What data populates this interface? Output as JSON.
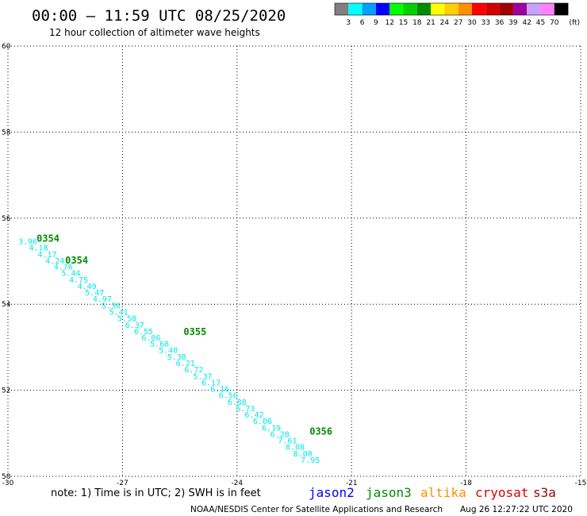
{
  "header": {
    "title": "00:00 – 11:59 UTC 08/25/2020",
    "subtitle": "12 hour collection of altimeter wave heights"
  },
  "legend": {
    "unit": "(ft)",
    "bins": [
      {
        "label": "3",
        "color": "#808080"
      },
      {
        "label": "6",
        "color": "#00ffff"
      },
      {
        "label": "9",
        "color": "#00a0ff"
      },
      {
        "label": "12",
        "color": "#0000ff"
      },
      {
        "label": "15",
        "color": "#00ff00"
      },
      {
        "label": "18",
        "color": "#00d000"
      },
      {
        "label": "21",
        "color": "#008c00"
      },
      {
        "label": "24",
        "color": "#ffff00"
      },
      {
        "label": "27",
        "color": "#ffd000"
      },
      {
        "label": "30",
        "color": "#ff9000"
      },
      {
        "label": "33",
        "color": "#ff0000"
      },
      {
        "label": "36",
        "color": "#d00000"
      },
      {
        "label": "39",
        "color": "#a00000"
      },
      {
        "label": "42",
        "color": "#a000a0"
      },
      {
        "label": "45",
        "color": "#c8a0ff"
      },
      {
        "label": "70",
        "color": "#ff80ff"
      },
      {
        "label": "",
        "color": "#000000"
      }
    ]
  },
  "chart_data": {
    "type": "scatter",
    "xlim": [
      -30,
      -15
    ],
    "ylim": [
      50,
      60
    ],
    "xticks": [
      -30,
      -27,
      -24,
      -21,
      -18,
      -15
    ],
    "xtick_labels": [
      "-30",
      "-27",
      "-24",
      "-21",
      "-18",
      "-15"
    ],
    "yticks": [
      50,
      52,
      54,
      56,
      58,
      60
    ],
    "ytick_labels": [
      "50",
      "52",
      "54",
      "56",
      "58",
      "60"
    ],
    "grid": true,
    "point_color": "#00e8e8",
    "time_color": "#008c00",
    "points": [
      {
        "x": -29.48,
        "y": 55.45,
        "label": "3.96"
      },
      {
        "x": -29.2,
        "y": 55.3,
        "label": "4.18"
      },
      {
        "x": -28.97,
        "y": 55.15,
        "label": "4.17"
      },
      {
        "x": -28.77,
        "y": 55.0,
        "label": "4.24"
      },
      {
        "x": -28.55,
        "y": 54.86,
        "label": "4.76"
      },
      {
        "x": -28.35,
        "y": 54.71,
        "label": "5.44"
      },
      {
        "x": -28.15,
        "y": 54.56,
        "label": "4.75"
      },
      {
        "x": -27.93,
        "y": 54.41,
        "label": "4.49"
      },
      {
        "x": -27.73,
        "y": 54.26,
        "label": "5.47"
      },
      {
        "x": -27.53,
        "y": 54.11,
        "label": "4.97"
      },
      {
        "x": -27.3,
        "y": 53.96,
        "label": "5.36"
      },
      {
        "x": -27.1,
        "y": 53.81,
        "label": "5.41"
      },
      {
        "x": -26.88,
        "y": 53.66,
        "label": "5.58"
      },
      {
        "x": -26.68,
        "y": 53.51,
        "label": "6.37"
      },
      {
        "x": -26.45,
        "y": 53.36,
        "label": "6.55"
      },
      {
        "x": -26.25,
        "y": 53.21,
        "label": "6.06"
      },
      {
        "x": -26.03,
        "y": 53.07,
        "label": "5.68"
      },
      {
        "x": -25.8,
        "y": 52.92,
        "label": "5.40"
      },
      {
        "x": -25.58,
        "y": 52.77,
        "label": "5.38"
      },
      {
        "x": -25.35,
        "y": 52.62,
        "label": "6.21"
      },
      {
        "x": -25.13,
        "y": 52.47,
        "label": "6.72"
      },
      {
        "x": -24.9,
        "y": 52.32,
        "label": "5.37"
      },
      {
        "x": -24.68,
        "y": 52.17,
        "label": "6.17"
      },
      {
        "x": -24.45,
        "y": 52.02,
        "label": "6.16"
      },
      {
        "x": -24.23,
        "y": 51.87,
        "label": "6.56"
      },
      {
        "x": -24.0,
        "y": 51.72,
        "label": "6.88"
      },
      {
        "x": -23.78,
        "y": 51.57,
        "label": "6.73"
      },
      {
        "x": -23.55,
        "y": 51.42,
        "label": "6.42"
      },
      {
        "x": -23.33,
        "y": 51.27,
        "label": "6.06"
      },
      {
        "x": -23.1,
        "y": 51.12,
        "label": "6.19"
      },
      {
        "x": -22.88,
        "y": 50.97,
        "label": "6.28"
      },
      {
        "x": -22.68,
        "y": 50.82,
        "label": "7.61"
      },
      {
        "x": -22.48,
        "y": 50.67,
        "label": "8.08"
      },
      {
        "x": -22.28,
        "y": 50.52,
        "label": "8.00"
      },
      {
        "x": -22.08,
        "y": 50.37,
        "label": "7.95"
      }
    ],
    "time_labels": [
      {
        "x": -28.95,
        "y": 55.53,
        "label": "0354"
      },
      {
        "x": -28.2,
        "y": 55.02,
        "label": "0354"
      },
      {
        "x": -25.1,
        "y": 53.36,
        "label": "0355"
      },
      {
        "x": -21.8,
        "y": 51.04,
        "label": "0356"
      }
    ]
  },
  "footer": {
    "note": "note:  1) Time is in UTC;  2) SWH is in feet",
    "satellites": [
      {
        "name": "jason2",
        "color": "#0000ff"
      },
      {
        "name": "jason3",
        "color": "#008c00"
      },
      {
        "name": "altika",
        "color": "#ff9000"
      },
      {
        "name": "cryosat",
        "color": "#e00000"
      },
      {
        "name": "s3a",
        "color": "#a00000"
      }
    ],
    "credit": "NOAA/NESDIS Center for Satellite Applications and Research",
    "timestamp": "Aug 26 12:27:22 UTC 2020"
  }
}
